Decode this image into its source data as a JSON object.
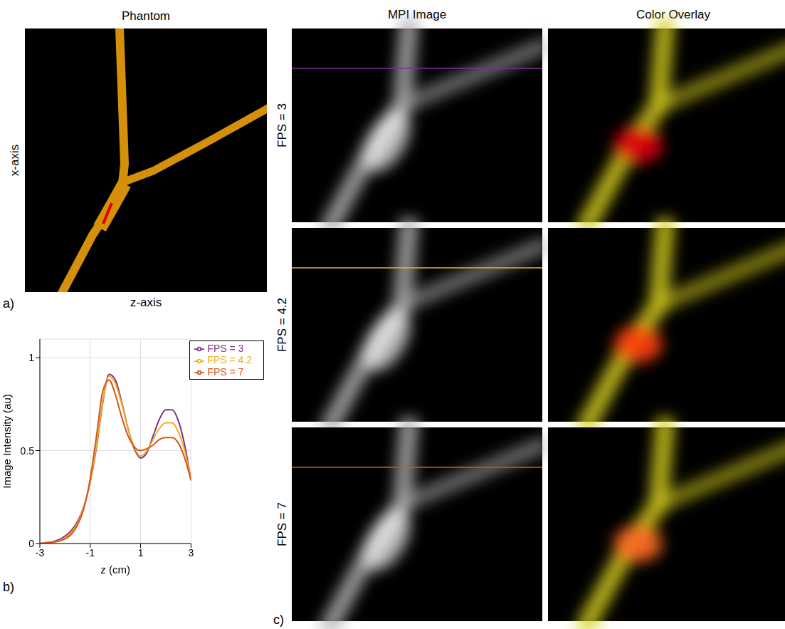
{
  "chart_data": {
    "type": "line",
    "x_label": "z (cm)",
    "y_label": "Image Intensity (au)",
    "x": [
      -3,
      -2.75,
      -2.5,
      -2.25,
      -2,
      -1.75,
      -1.5,
      -1.25,
      -1,
      -0.75,
      -0.5,
      -0.25,
      0,
      0.25,
      0.5,
      0.75,
      1,
      1.25,
      1.5,
      1.75,
      2,
      2.25,
      2.5,
      2.75,
      3
    ],
    "series": [
      {
        "name": "FPS = 3",
        "color": "#7E2F8E",
        "values": [
          0,
          0.005,
          0.01,
          0.02,
          0.04,
          0.07,
          0.12,
          0.2,
          0.33,
          0.52,
          0.76,
          0.91,
          0.88,
          0.76,
          0.62,
          0.51,
          0.46,
          0.49,
          0.58,
          0.67,
          0.72,
          0.72,
          0.66,
          0.53,
          0.34
        ]
      },
      {
        "name": "FPS = 4.2",
        "color": "#EDB120",
        "values": [
          0,
          0.004,
          0.008,
          0.015,
          0.03,
          0.06,
          0.11,
          0.2,
          0.33,
          0.53,
          0.77,
          0.9,
          0.86,
          0.75,
          0.62,
          0.52,
          0.47,
          0.5,
          0.56,
          0.62,
          0.65,
          0.65,
          0.6,
          0.5,
          0.34
        ]
      },
      {
        "name": "FPS = 7",
        "color": "#D95319",
        "values": [
          0,
          0.003,
          0.006,
          0.012,
          0.025,
          0.05,
          0.1,
          0.19,
          0.35,
          0.58,
          0.82,
          0.88,
          0.8,
          0.68,
          0.58,
          0.52,
          0.5,
          0.51,
          0.53,
          0.56,
          0.57,
          0.57,
          0.54,
          0.46,
          0.34
        ]
      }
    ],
    "xlim": [
      -3,
      3
    ],
    "xticks": [
      -3,
      -1,
      1,
      3
    ],
    "ylim": [
      0,
      1.1
    ],
    "yticks": [
      0,
      0.5,
      1
    ],
    "grid": true,
    "legend": "upper right"
  },
  "figure": {
    "panel_letters": [
      "a)",
      "b)",
      "c)"
    ],
    "phantom": {
      "title": "Phantom",
      "x_label": "x-axis",
      "z_label": "z-axis"
    },
    "columns": [
      "MPI Image",
      "Color Overlay"
    ]
  }
}
